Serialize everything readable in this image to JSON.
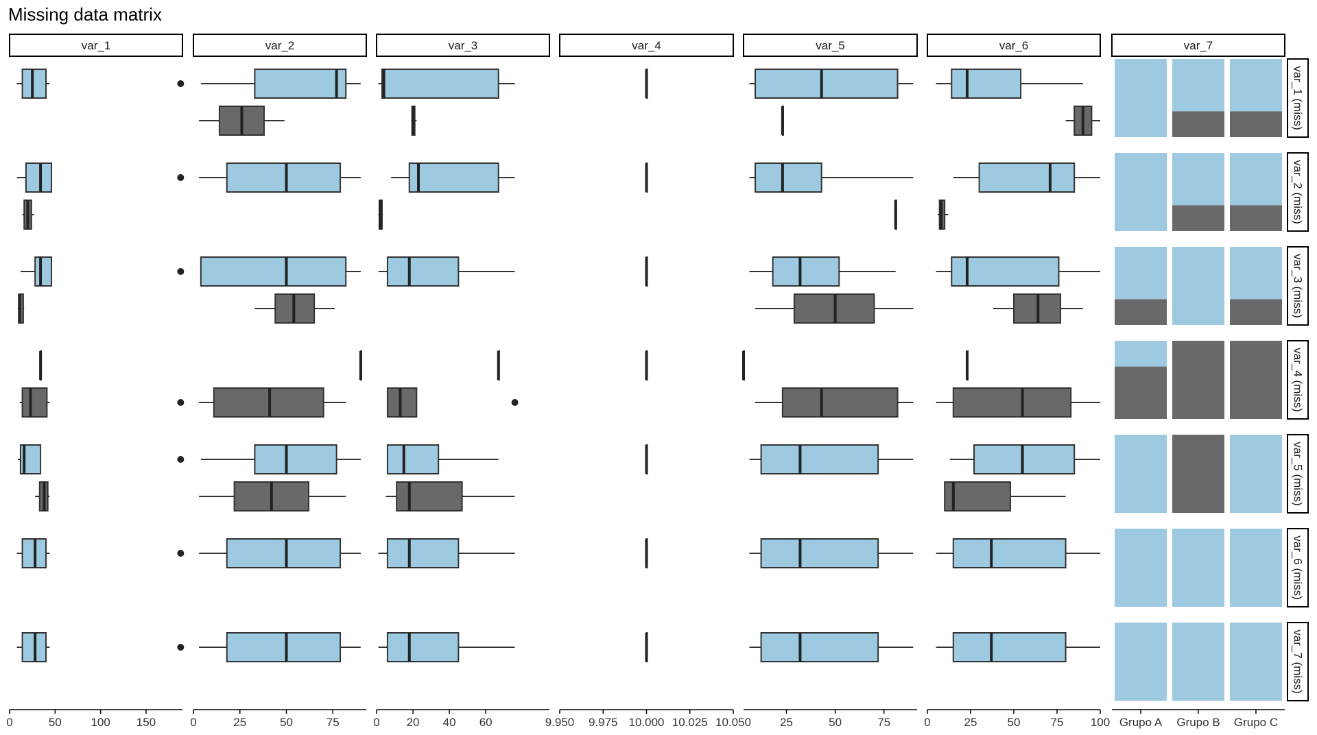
{
  "chart_data": {
    "type": "boxplot-matrix",
    "title": "Missing data matrix",
    "columns": [
      "var_1",
      "var_2",
      "var_3",
      "var_4",
      "var_5",
      "var_6",
      "var_7"
    ],
    "rows": [
      "var_1 (miss)",
      "var_2 (miss)",
      "var_3 (miss)",
      "var_4 (miss)",
      "var_5 (miss)",
      "var_6 (miss)",
      "var_7 (miss)"
    ],
    "colors": {
      "observed": "#9ecae1",
      "missing": "#696969"
    },
    "axes": {
      "var_1": {
        "domain": [
          0,
          190
        ],
        "ticks": [
          0,
          50,
          100,
          150
        ],
        "tick_labels": [
          "0",
          "50",
          "100",
          "150"
        ]
      },
      "var_2": {
        "domain": [
          0,
          93
        ],
        "ticks": [
          0,
          25,
          50,
          75
        ],
        "tick_labels": [
          "0",
          "25",
          "50",
          "75"
        ]
      },
      "var_3": {
        "domain": [
          0,
          95
        ],
        "ticks": [
          0,
          20,
          40,
          60
        ],
        "tick_labels": [
          "0",
          "20",
          "40",
          "60"
        ]
      },
      "var_4": {
        "domain": [
          9.95,
          10.05
        ],
        "ticks": [
          9.95,
          9.975,
          10.0,
          10.025,
          10.05
        ],
        "tick_labels": [
          "9.950",
          "9.975",
          "10.000",
          "10.025",
          "10.050"
        ]
      },
      "var_5": {
        "domain": [
          3,
          92
        ],
        "ticks": [
          25,
          50,
          75
        ],
        "tick_labels": [
          "25",
          "50",
          "75"
        ]
      },
      "var_6": {
        "domain": [
          0,
          100
        ],
        "ticks": [
          0,
          25,
          50,
          75,
          100
        ],
        "tick_labels": [
          "0",
          "25",
          "50",
          "75",
          "100"
        ]
      },
      "var_7": {
        "categories": [
          "Grupo A",
          "Grupo B",
          "Grupo C"
        ]
      }
    },
    "boxes": {
      "var_1": [
        {
          "obs": [
            8,
            14,
            25,
            40,
            44,
            [
              188
            ]
          ],
          "miss": null
        },
        {
          "obs": [
            8,
            18,
            34,
            46,
            46,
            [
              188
            ]
          ],
          "miss": [
            14,
            16,
            20,
            24,
            27,
            []
          ]
        },
        {
          "obs": [
            12,
            28,
            34,
            46,
            46,
            [
              188
            ]
          ],
          "miss": [
            9,
            10,
            11,
            15,
            16,
            []
          ]
        },
        {
          "obs": [
            34,
            34,
            34,
            34,
            34,
            []
          ],
          "miss": [
            11,
            14,
            23,
            41,
            44,
            [
              188
            ]
          ]
        },
        {
          "obs": [
            9,
            12,
            16,
            34,
            34,
            [
              188
            ]
          ],
          "miss": [
            28,
            33,
            38,
            42,
            44,
            []
          ]
        },
        {
          "obs": [
            8,
            14,
            28,
            40,
            44,
            [
              188
            ]
          ],
          "miss": null
        },
        {
          "obs": [
            8,
            14,
            28,
            40,
            44,
            [
              188
            ]
          ],
          "miss": null
        }
      ],
      "var_2": [
        {
          "obs": [
            4,
            33,
            77,
            82,
            90,
            []
          ],
          "miss": [
            3,
            14,
            26,
            38,
            49,
            []
          ]
        },
        {
          "obs": [
            3,
            18,
            50,
            79,
            90,
            []
          ],
          "miss": null
        },
        {
          "obs": [
            4,
            4,
            50,
            82,
            90,
            []
          ],
          "miss": [
            33,
            44,
            54,
            65,
            76,
            []
          ]
        },
        {
          "obs": [
            90,
            90,
            90,
            90,
            90,
            []
          ],
          "miss": [
            3,
            11,
            41,
            70,
            82,
            []
          ]
        },
        {
          "obs": [
            4,
            33,
            50,
            77,
            90,
            []
          ],
          "miss": [
            3,
            22,
            42,
            62,
            82,
            []
          ]
        },
        {
          "obs": [
            3,
            18,
            50,
            79,
            90,
            []
          ],
          "miss": null
        },
        {
          "obs": [
            3,
            18,
            50,
            79,
            90,
            []
          ],
          "miss": null
        }
      ],
      "var_3": [
        {
          "obs": [
            1,
            3,
            4,
            67,
            76,
            []
          ],
          "miss": [
            19,
            19.5,
            20,
            21,
            22,
            []
          ]
        },
        {
          "obs": [
            8,
            18,
            23,
            67,
            76,
            []
          ],
          "miss": [
            1,
            1.5,
            2,
            3,
            3.5,
            []
          ]
        },
        {
          "obs": [
            1,
            6,
            18,
            45,
            76,
            []
          ],
          "miss": null
        },
        {
          "obs": [
            67,
            67,
            67,
            67,
            67,
            []
          ],
          "miss": [
            6,
            6,
            13,
            22,
            22,
            [
              76
            ]
          ]
        },
        {
          "obs": [
            6,
            6,
            15,
            34,
            67,
            []
          ],
          "miss": [
            5,
            11,
            18,
            47,
            76,
            []
          ]
        },
        {
          "obs": [
            1,
            6,
            18,
            45,
            76,
            []
          ],
          "miss": null
        },
        {
          "obs": [
            1,
            6,
            18,
            45,
            76,
            []
          ],
          "miss": null
        }
      ],
      "var_4": [
        {
          "obs": [
            10,
            10,
            10,
            10,
            10,
            []
          ],
          "miss": null
        },
        {
          "obs": [
            10,
            10,
            10,
            10,
            10,
            []
          ],
          "miss": null
        },
        {
          "obs": [
            10,
            10,
            10,
            10,
            10,
            []
          ],
          "miss": null
        },
        {
          "obs": [
            10,
            10,
            10,
            10,
            10,
            []
          ],
          "miss": null
        },
        {
          "obs": [
            10,
            10,
            10,
            10,
            10,
            []
          ],
          "miss": null
        },
        {
          "obs": [
            10,
            10,
            10,
            10,
            10,
            []
          ],
          "miss": null
        },
        {
          "obs": [
            10,
            10,
            10,
            10,
            10,
            []
          ],
          "miss": null
        }
      ],
      "var_5": [
        {
          "obs": [
            6,
            9,
            43,
            82,
            90,
            []
          ],
          "miss": [
            23,
            23,
            23,
            23,
            23,
            []
          ]
        },
        {
          "obs": [
            6,
            9,
            23,
            43,
            90,
            []
          ],
          "miss": [
            81,
            81,
            81,
            81,
            81,
            []
          ]
        },
        {
          "obs": [
            6,
            18,
            32,
            52,
            81,
            []
          ],
          "miss": [
            9,
            29,
            50,
            70,
            90,
            []
          ]
        },
        {
          "obs": [
            3,
            3,
            3,
            3,
            3,
            []
          ],
          "miss": [
            9,
            23,
            43,
            82,
            90,
            []
          ]
        },
        {
          "obs": [
            6,
            12,
            32,
            72,
            90,
            []
          ],
          "miss": null
        },
        {
          "obs": [
            6,
            12,
            32,
            72,
            90,
            []
          ],
          "miss": null
        },
        {
          "obs": [
            6,
            12,
            32,
            72,
            90,
            []
          ],
          "miss": null
        }
      ],
      "var_6": [
        {
          "obs": [
            5,
            14,
            23,
            54,
            90,
            []
          ],
          "miss": [
            80,
            85,
            90,
            95,
            100,
            []
          ]
        },
        {
          "obs": [
            15,
            30,
            71,
            85,
            100,
            []
          ],
          "miss": [
            6,
            7,
            8,
            10,
            12,
            []
          ]
        },
        {
          "obs": [
            5,
            14,
            23,
            76,
            100,
            []
          ],
          "miss": [
            38,
            50,
            64,
            77,
            90,
            []
          ]
        },
        {
          "obs": [
            23,
            23,
            23,
            23,
            23,
            []
          ],
          "miss": [
            5,
            15,
            55,
            83,
            100,
            []
          ]
        },
        {
          "obs": [
            13,
            27,
            55,
            85,
            100,
            []
          ],
          "miss": [
            10,
            10,
            15,
            48,
            80,
            []
          ]
        },
        {
          "obs": [
            5,
            15,
            37,
            80,
            100,
            []
          ],
          "miss": null
        },
        {
          "obs": [
            5,
            15,
            37,
            80,
            100,
            []
          ],
          "miss": null
        }
      ]
    },
    "var_7_missing_share": [
      [
        0,
        0.33,
        0.33
      ],
      [
        0,
        0.33,
        0.33
      ],
      [
        0.33,
        0,
        0.33
      ],
      [
        0.67,
        1,
        1
      ],
      [
        0,
        1,
        0
      ],
      [
        0,
        0,
        0
      ],
      [
        0,
        0,
        0
      ]
    ]
  }
}
